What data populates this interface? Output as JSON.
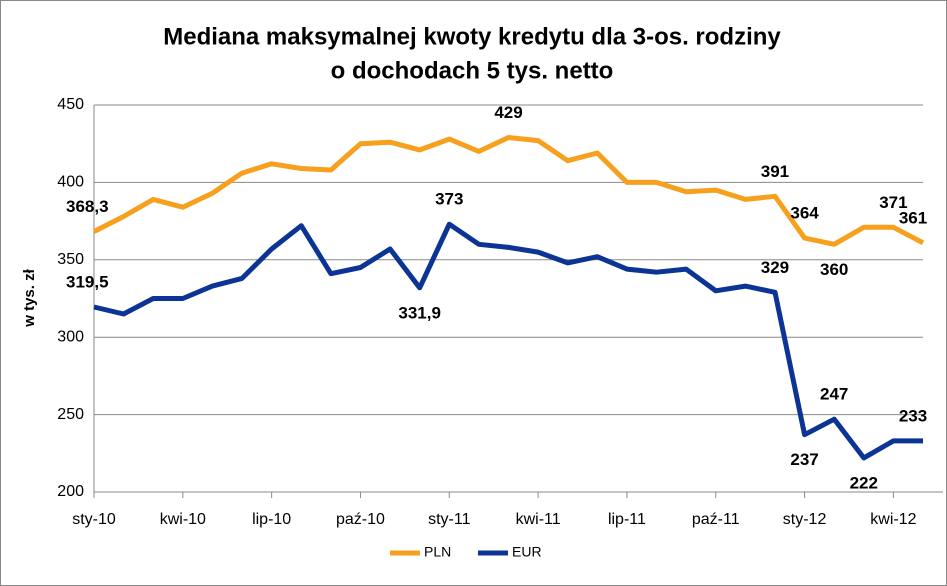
{
  "chart_data": {
    "type": "line",
    "title": [
      "Mediana maksymalnej kwoty kredytu dla 3-os. rodziny",
      "o dochodach 5 tys. netto"
    ],
    "y_label": "w tys. zł",
    "categories": [
      "sty-10",
      null,
      null,
      "kwi-10",
      null,
      null,
      "lip-10",
      null,
      null,
      "paź-10",
      null,
      null,
      "sty-11",
      null,
      null,
      "kwi-11",
      null,
      null,
      "lip-11",
      null,
      null,
      "paź-11",
      null,
      null,
      "sty-12",
      null,
      null,
      "kwi-12",
      null
    ],
    "series": [
      {
        "name": "PLN",
        "color": "#f7a01d",
        "values": [
          368.3,
          378,
          389,
          384,
          393,
          406,
          412,
          409,
          408,
          425,
          426,
          421,
          428,
          420,
          429,
          427,
          414,
          419,
          400,
          400,
          394,
          395,
          389,
          391,
          364,
          360,
          371,
          371,
          361
        ],
        "value_labels": [
          "368,3",
          null,
          null,
          null,
          null,
          null,
          null,
          null,
          null,
          null,
          null,
          null,
          null,
          null,
          "429",
          null,
          null,
          null,
          null,
          null,
          null,
          null,
          null,
          "391",
          "364",
          "360",
          null,
          "371",
          "361"
        ]
      },
      {
        "name": "EUR",
        "color": "#0c3494",
        "values": [
          319.5,
          315,
          325,
          325,
          333,
          338,
          357,
          372,
          341,
          345,
          357,
          331.9,
          373,
          360,
          358,
          355,
          348,
          352,
          344,
          342,
          344,
          330,
          333,
          329,
          237,
          247,
          222,
          233,
          233
        ],
        "value_labels": [
          "319,5",
          null,
          null,
          null,
          null,
          null,
          null,
          null,
          null,
          null,
          null,
          "331,9",
          "373",
          null,
          null,
          null,
          null,
          null,
          null,
          null,
          null,
          null,
          null,
          "329",
          "237",
          "247",
          "222",
          null,
          "233"
        ]
      }
    ],
    "ylim": [
      200,
      450
    ],
    "yticks": [
      200,
      250,
      300,
      350,
      400,
      450
    ],
    "grid": true,
    "legend": "bottom"
  }
}
